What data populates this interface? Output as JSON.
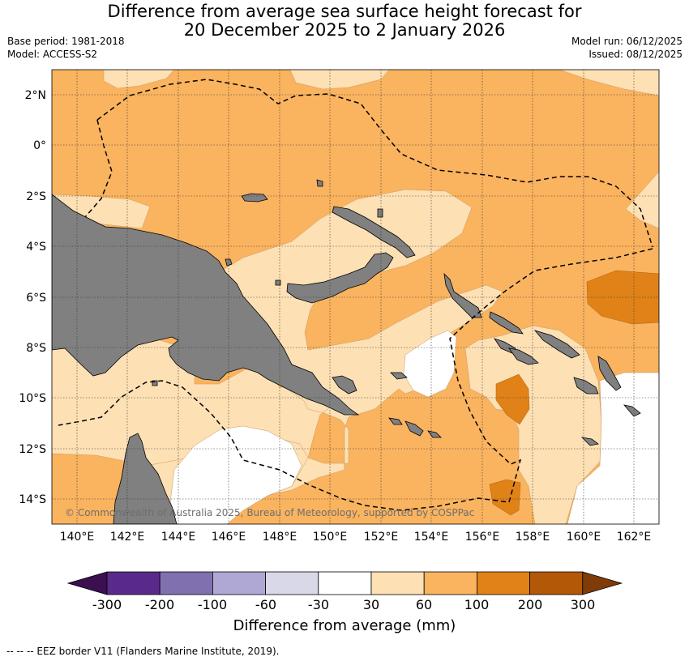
{
  "title_line1": "Difference from average sea surface height forecast for",
  "title_line2": "20 December 2025 to 2 January 2026",
  "meta_left": [
    "Base period: 1981-2018",
    "Model: ACCESS-S2"
  ],
  "meta_right": [
    "Model run: 06/12/2025",
    "Issued: 08/12/2025"
  ],
  "map": {
    "lon_range": [
      139,
      163
    ],
    "lat_range": [
      -15,
      3
    ],
    "lon_ticks": [
      "140°E",
      "142°E",
      "144°E",
      "146°E",
      "148°E",
      "150°E",
      "152°E",
      "154°E",
      "156°E",
      "158°E",
      "160°E",
      "162°E"
    ],
    "lat_ticks": [
      "2°N",
      "0°",
      "2°S",
      "4°S",
      "6°S",
      "8°S",
      "10°S",
      "12°S",
      "14°S"
    ],
    "grid": "dotted",
    "land_color": "#808080",
    "copyright": "© Commonwealth of Australia 2025, Bureau of Meteorology, supported by COSPPac"
  },
  "colorbar": {
    "title": "Difference from average (mm)",
    "labels": [
      "-300",
      "-200",
      "-100",
      "-60",
      "-30",
      "30",
      "60",
      "100",
      "200",
      "300"
    ],
    "colors": [
      "#3b0f50",
      "#5a2a8a",
      "#8070b0",
      "#b0a8d4",
      "#d8d8e8",
      "#ffffff",
      "#fde0b4",
      "#fab35f",
      "#e08218",
      "#b35806",
      "#7f3b08"
    ]
  },
  "footer": "--  --  -- EEZ border V11 (Flanders Marine Institute, 2019)."
}
